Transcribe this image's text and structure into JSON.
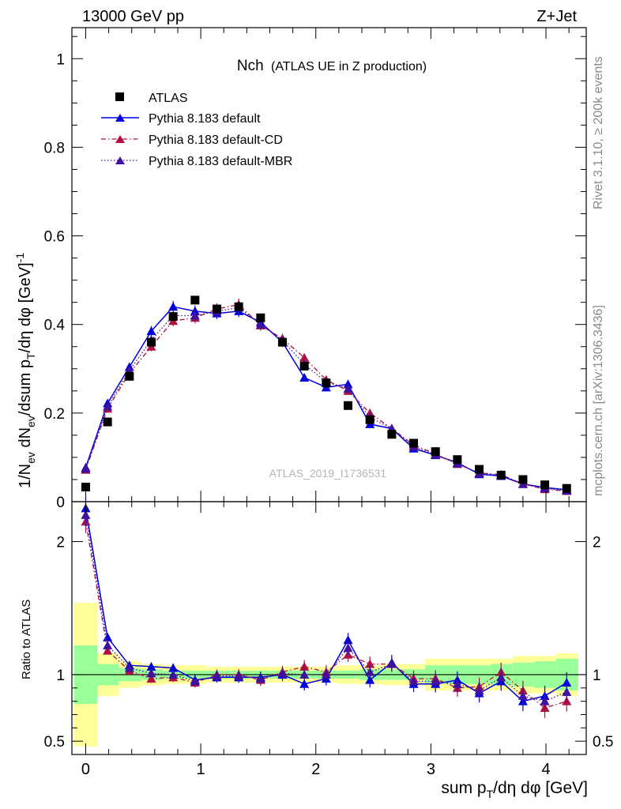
{
  "header": {
    "energy_label": "13000 GeV pp",
    "process_label": "Z+Jet"
  },
  "side_labels": {
    "rivet": "Rivet 3.1.10, ≥ 200k events",
    "mcplots": "mcplots.cern.ch [arXiv:1306.3436]"
  },
  "colors": {
    "atlas": "#000000",
    "default": "#0000dd",
    "cd": "#b0103f",
    "mbr": "#4010a0",
    "band_outer": "#ffff99",
    "band_inner": "#99ff99"
  },
  "chart_data": [
    {
      "type": "scatter",
      "title": "Nch",
      "subtitle": "(ATLAS UE in Z production)",
      "watermark": "ATLAS_2019_I1736531",
      "ylabel": "1/Nev dNev/dsum pT/dη dφ [GeV]^-1",
      "xlabel": "sum pT/dη dφ [GeV]",
      "xlim": [
        -0.12,
        4.35
      ],
      "ylim": [
        0,
        1.07
      ],
      "yticks": [
        "0",
        "0.2",
        "0.4",
        "0.6",
        "0.8",
        "1"
      ],
      "x": [
        0.0,
        0.19,
        0.38,
        0.57,
        0.76,
        0.95,
        1.14,
        1.33,
        1.52,
        1.71,
        1.9,
        2.09,
        2.28,
        2.47,
        2.66,
        2.85,
        3.04,
        3.23,
        3.42,
        3.61,
        3.8,
        3.99,
        4.18
      ],
      "legend": [
        "ATLAS",
        "Pythia 8.183 default",
        "Pythia 8.183 default-CD",
        "Pythia 8.183 default-MBR"
      ],
      "series": [
        {
          "name": "ATLAS",
          "style": "square",
          "values": [
            0.033,
            0.18,
            0.283,
            0.36,
            0.418,
            0.455,
            0.435,
            0.44,
            0.415,
            0.36,
            0.306,
            0.268,
            0.217,
            0.185,
            0.152,
            0.132,
            0.113,
            0.095,
            0.073,
            0.06,
            0.05,
            0.038,
            0.03
          ]
        },
        {
          "name": "Pythia 8.183 default",
          "style": "solid",
          "values": [
            0.077,
            0.222,
            0.304,
            0.385,
            0.44,
            0.43,
            0.425,
            0.43,
            0.405,
            0.36,
            0.28,
            0.258,
            0.265,
            0.175,
            0.165,
            0.12,
            0.105,
            0.088,
            0.062,
            0.058,
            0.04,
            0.032,
            0.027
          ]
        },
        {
          "name": "Pythia 8.183 default-CD",
          "style": "dashdot",
          "values": [
            0.072,
            0.21,
            0.29,
            0.35,
            0.408,
            0.415,
            0.435,
            0.445,
            0.398,
            0.368,
            0.325,
            0.275,
            0.25,
            0.2,
            0.165,
            0.128,
            0.108,
            0.085,
            0.065,
            0.061,
            0.04,
            0.028,
            0.024
          ]
        },
        {
          "name": "Pythia 8.183 default-MBR",
          "style": "dotted",
          "values": [
            0.074,
            0.215,
            0.296,
            0.365,
            0.42,
            0.42,
            0.43,
            0.438,
            0.4,
            0.364,
            0.31,
            0.27,
            0.255,
            0.19,
            0.165,
            0.124,
            0.106,
            0.086,
            0.064,
            0.06,
            0.04,
            0.03,
            0.025
          ]
        }
      ]
    },
    {
      "type": "scatter",
      "ylabel": "Ratio to ATLAS",
      "ylim": [
        0.4,
        2.3
      ],
      "yticks": [
        "0.5",
        "1",
        "2"
      ],
      "xticks": [
        "0",
        "1",
        "2",
        "3",
        "4"
      ],
      "x": [
        0.0,
        0.19,
        0.38,
        0.57,
        0.76,
        0.95,
        1.14,
        1.33,
        1.52,
        1.71,
        1.9,
        2.09,
        2.28,
        2.47,
        2.66,
        2.85,
        3.04,
        3.23,
        3.42,
        3.61,
        3.8,
        3.99,
        4.18
      ],
      "band_edges": [
        -0.1,
        0.1,
        0.29,
        0.48,
        0.67,
        0.86,
        1.05,
        1.24,
        1.43,
        1.62,
        1.81,
        2.0,
        2.19,
        2.38,
        2.57,
        2.76,
        2.95,
        3.14,
        3.33,
        3.52,
        3.71,
        3.9,
        4.09,
        4.28
      ],
      "band_outer": [
        0.54,
        0.16,
        0.1,
        0.08,
        0.07,
        0.07,
        0.06,
        0.06,
        0.06,
        0.06,
        0.06,
        0.06,
        0.07,
        0.07,
        0.08,
        0.08,
        0.12,
        0.12,
        0.12,
        0.12,
        0.14,
        0.14,
        0.16,
        0.22
      ],
      "band_inner": [
        0.22,
        0.08,
        0.05,
        0.04,
        0.03,
        0.03,
        0.03,
        0.03,
        0.03,
        0.03,
        0.03,
        0.03,
        0.03,
        0.04,
        0.04,
        0.04,
        0.07,
        0.07,
        0.07,
        0.08,
        0.09,
        0.1,
        0.12,
        0.13
      ],
      "series": [
        {
          "name": "Pythia 8.183 default",
          "style": "solid",
          "values": [
            2.25,
            1.28,
            1.07,
            1.06,
            1.05,
            0.96,
            0.98,
            0.98,
            0.98,
            1.0,
            0.93,
            0.97,
            1.26,
            0.96,
            1.09,
            0.93,
            0.93,
            0.96,
            0.86,
            0.95,
            0.8,
            0.84,
            0.94
          ]
        },
        {
          "name": "Pythia 8.183 default-CD",
          "style": "dashdot",
          "values": [
            2.15,
            1.18,
            1.03,
            0.97,
            0.98,
            0.94,
            1.0,
            1.0,
            0.96,
            1.02,
            1.06,
            1.02,
            1.15,
            1.08,
            1.08,
            0.97,
            0.97,
            0.9,
            0.91,
            1.02,
            0.88,
            0.75,
            0.8
          ]
        },
        {
          "name": "Pythia 8.183 default-MBR",
          "style": "dotted",
          "values": [
            2.2,
            1.22,
            1.05,
            1.01,
            1.0,
            0.95,
            0.99,
            0.99,
            0.97,
            1.01,
            1.0,
            1.0,
            1.2,
            1.02,
            1.08,
            0.95,
            0.95,
            0.93,
            0.88,
            0.98,
            0.84,
            0.8,
            0.87
          ]
        }
      ]
    }
  ]
}
